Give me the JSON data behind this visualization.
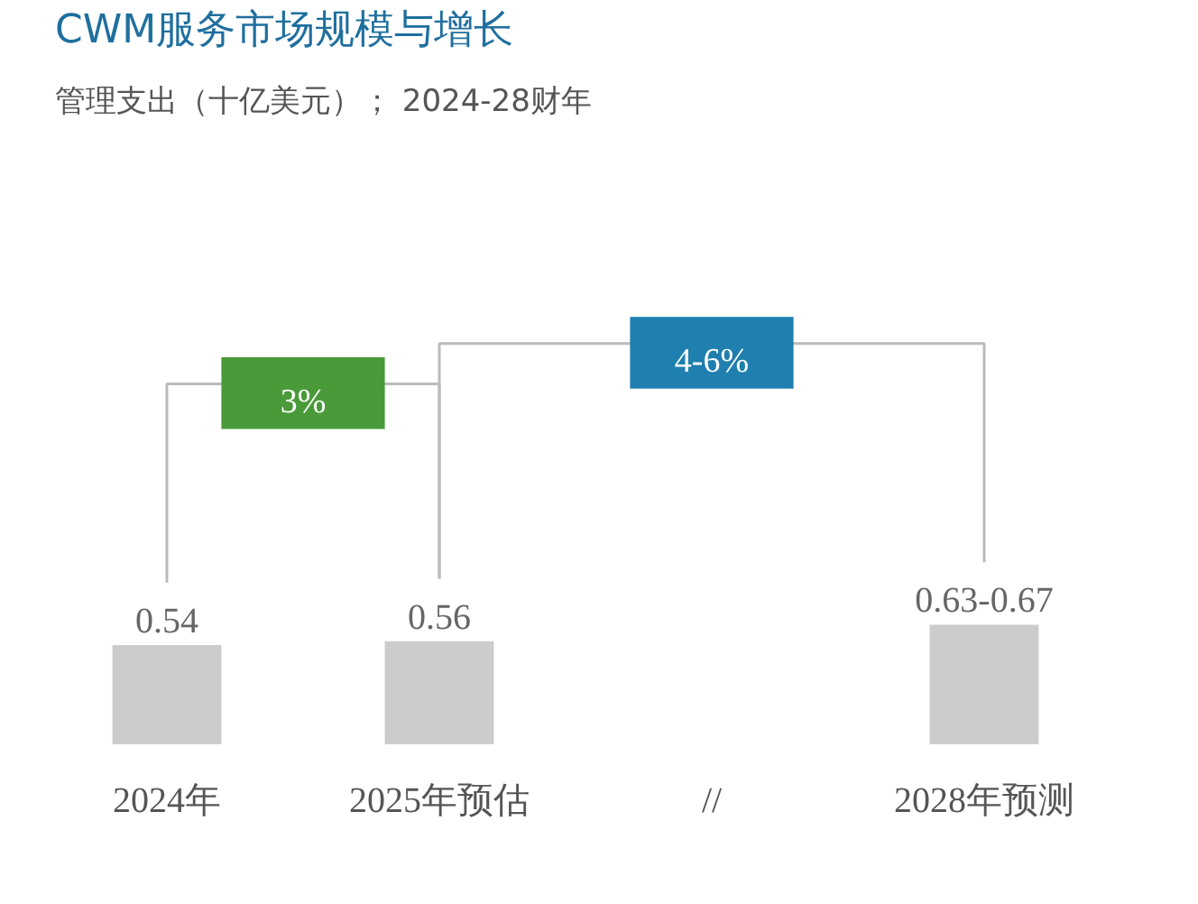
{
  "chart_data": {
    "type": "bar",
    "title": "CWM服务市场规模与增长",
    "subtitle": "管理支出（十亿美元）； 2024-28财年",
    "categories": [
      "2024年",
      "2025年预估",
      "//",
      "2028年预测"
    ],
    "values": [
      0.54,
      0.56,
      null,
      0.65
    ],
    "value_labels": [
      "0.54",
      "0.56",
      null,
      "0.63-0.67"
    ],
    "color": "#cccccc",
    "annotations": [
      "3%",
      "4-6%"
    ]
  }
}
